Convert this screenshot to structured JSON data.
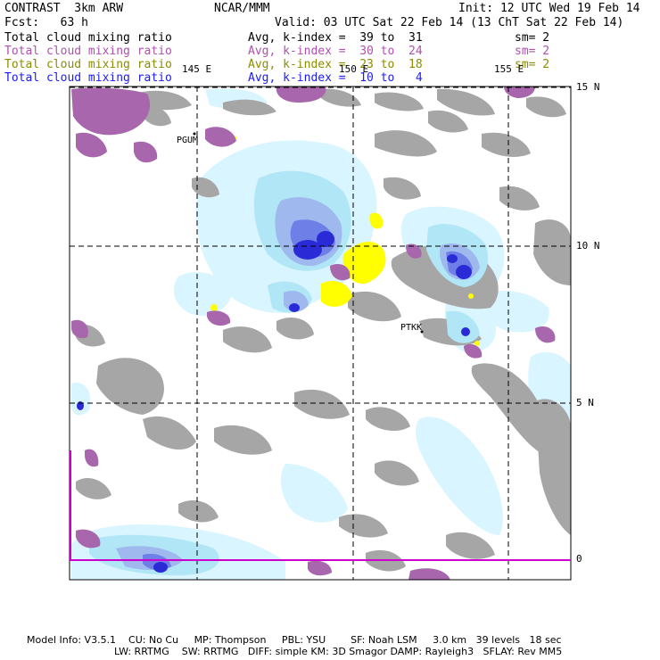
{
  "header": {
    "title_left": "CONTRAST  3km ARW",
    "title_center": "NCAR/MMM",
    "init": "Init: 12 UTC Wed 19 Feb 14",
    "fcst": "Fcst:   63 h",
    "valid": "Valid: 03 UTC Sat 22 Feb 14 (13 ChT Sat 22 Feb 14)"
  },
  "legend": [
    {
      "field": "Total cloud mixing ratio",
      "stat": "Avg, k-index =  39 to  31",
      "sm": "sm= 2",
      "color": "#000000"
    },
    {
      "field": "Total cloud mixing ratio",
      "stat": "Avg, k-index =  30 to  24",
      "sm": "sm= 2",
      "color": "#b050b0"
    },
    {
      "field": "Total cloud mixing ratio",
      "stat": "Avg, k-index =  23 to  18",
      "sm": "sm= 2",
      "color": "#8c8c00"
    },
    {
      "field": "Total cloud mixing ratio",
      "stat": "Avg, k-index =  10 to   4",
      "sm": "",
      "color": "#1a1aff"
    }
  ],
  "lon_labels": [
    "145 E",
    "150 E",
    "155 E"
  ],
  "lat_labels": [
    "15 N",
    "10 N",
    "5 N",
    "0"
  ],
  "stations": [
    "PGUM",
    "PTKK"
  ],
  "footer": {
    "line1": "Model Info: V3.5.1    CU: No Cu     MP: Thompson     PBL: YSU        SF: Noah LSM     3.0 km   39 levels   18 sec",
    "line2": "LW: RRTMG    SW: RRTMG   DIFF: simple KM: 3D Smagor DAMP: Rayleigh3   SFLAY: Rev MM5"
  },
  "colors": {
    "gray": "#a6a6a6",
    "purple": "#a866ac",
    "yellow": "#ffff00",
    "light_cyan": "#d9f5ff",
    "cyan": "#b0e6f5",
    "blue1": "#9fb8ee",
    "blue2": "#6f7fe8",
    "blue3": "#2a2ad6"
  }
}
